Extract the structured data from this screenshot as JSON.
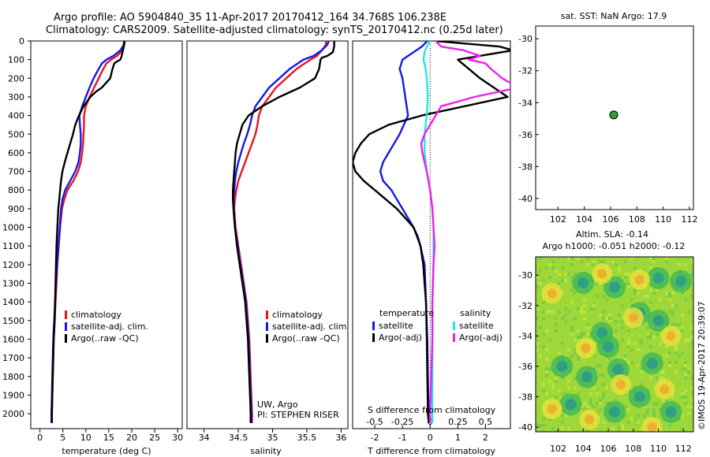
{
  "header": {
    "line1": "Argo profile: AO 5904840_35 11-Apr-2017 20170412_164 34.768S 106.238E",
    "line2": "Climatology: CARS2009. Satellite-adjusted climatology: synTS_20170412.nc (0.25d later)"
  },
  "side_label": "©IMOS 19-Apr-2017 20:39:07",
  "credit": {
    "line1": "UW, Argo",
    "line2": "PI: STEPHEN RISER"
  },
  "colors": {
    "climatology": "#e8141c",
    "satellite": "#1418e8",
    "argo": "#000000",
    "sat_salinity": "#1ee8e8",
    "argo_salinity": "#f01ef0"
  },
  "chart_data": [
    {
      "type": "line",
      "name": "temperature",
      "xlabel": "temperature (deg C)",
      "xticks": [
        "0",
        "5",
        "10",
        "15",
        "20",
        "25",
        "30"
      ],
      "xlim": [
        -2,
        31
      ],
      "ylim": [
        0,
        2080
      ],
      "yticks": [
        "0",
        "100",
        "200",
        "300",
        "400",
        "500",
        "600",
        "700",
        "800",
        "900",
        "1000",
        "1100",
        "1200",
        "1300",
        "1400",
        "1500",
        "1600",
        "1700",
        "1800",
        "1900",
        "2000"
      ],
      "legend": [
        "climatology",
        "satellite-adj. clim.",
        "Argo(..raw -QC)"
      ],
      "series": [
        {
          "name": "climatology",
          "color": "climatology",
          "depth": [
            0,
            20,
            50,
            80,
            100,
            120,
            150,
            200,
            250,
            300,
            350,
            400,
            450,
            500,
            550,
            600,
            650,
            700,
            750,
            800,
            850,
            900,
            1000,
            1100,
            1200,
            1300,
            1400,
            1500,
            1600,
            1700,
            1800,
            1900,
            2000,
            2050
          ],
          "values": [
            18.5,
            18.4,
            18.0,
            16.8,
            15.5,
            14.5,
            13.8,
            12.8,
            11.8,
            10.8,
            10.0,
            9.6,
            9.6,
            9.5,
            9.4,
            9.2,
            8.9,
            8.3,
            7.3,
            6.0,
            5.3,
            4.8,
            4.4,
            4.1,
            3.8,
            3.6,
            3.4,
            3.2,
            3.0,
            2.9,
            2.8,
            2.7,
            2.6,
            2.6
          ]
        },
        {
          "name": "satellite-adj. clim.",
          "color": "satellite",
          "depth": [
            0,
            20,
            50,
            80,
            100,
            120,
            150,
            200,
            250,
            300,
            350,
            400,
            450,
            500,
            550,
            600,
            650,
            700,
            750,
            800,
            850,
            900,
            1000,
            1100,
            1200,
            1300,
            1400,
            1500,
            1600,
            1700,
            1800,
            1900,
            2000,
            2050
          ],
          "values": [
            18.4,
            18.3,
            17.5,
            16.0,
            14.5,
            13.5,
            12.8,
            11.7,
            10.8,
            10.0,
            9.2,
            8.6,
            8.7,
            8.9,
            8.9,
            8.7,
            8.4,
            7.7,
            6.6,
            5.5,
            4.9,
            4.6,
            4.3,
            4.0,
            3.7,
            3.5,
            3.3,
            3.1,
            2.9,
            2.8,
            2.7,
            2.6,
            2.5,
            2.5
          ]
        },
        {
          "name": "Argo(..raw -QC)",
          "color": "argo",
          "depth": [
            0,
            20,
            50,
            80,
            100,
            110,
            120,
            150,
            200,
            250,
            270,
            300,
            350,
            400,
            450,
            500,
            550,
            600,
            650,
            700,
            750,
            800,
            850,
            900,
            950,
            1000,
            1100,
            1200,
            1300,
            1400,
            1500,
            1600,
            1700,
            1800,
            1900,
            2000,
            2050
          ],
          "values": [
            18.3,
            18.3,
            18.1,
            17.8,
            17.5,
            16.8,
            16.2,
            15.8,
            15.3,
            13.5,
            12.3,
            11.0,
            9.5,
            8.5,
            7.7,
            7.2,
            6.6,
            6.0,
            5.4,
            4.9,
            4.6,
            4.4,
            4.2,
            4.0,
            3.9,
            3.8,
            3.6,
            3.5,
            3.4,
            3.3,
            3.2,
            3.0,
            2.9,
            2.8,
            2.7,
            2.6,
            2.6
          ]
        }
      ]
    },
    {
      "type": "line",
      "name": "salinity",
      "xlabel": "salinity",
      "xticks": [
        "34",
        "34.5",
        "35",
        "35.5",
        "36"
      ],
      "xlim": [
        33.75,
        36.1
      ],
      "ylim": [
        0,
        2080
      ],
      "legend": [
        "climatology",
        "satellite-adj. clim.",
        "Argo(..raw -QC)"
      ],
      "series": [
        {
          "name": "climatology",
          "color": "climatology",
          "depth": [
            0,
            20,
            50,
            80,
            100,
            150,
            200,
            250,
            300,
            350,
            400,
            450,
            500,
            550,
            600,
            650,
            700,
            750,
            800,
            850,
            900,
            1000,
            1100,
            1200,
            1300,
            1400,
            1500,
            1600,
            1700,
            1800,
            1900,
            2000,
            2050
          ],
          "values": [
            35.78,
            35.78,
            35.72,
            35.65,
            35.55,
            35.35,
            35.2,
            35.05,
            34.95,
            34.85,
            34.8,
            34.78,
            34.75,
            34.7,
            34.65,
            34.6,
            34.55,
            34.5,
            34.47,
            34.45,
            34.44,
            34.46,
            34.5,
            34.54,
            34.58,
            34.62,
            34.64,
            34.66,
            34.67,
            34.68,
            34.69,
            34.7,
            34.7
          ]
        },
        {
          "name": "satellite-adj. clim.",
          "color": "satellite",
          "depth": [
            0,
            20,
            50,
            80,
            100,
            150,
            200,
            250,
            300,
            350,
            400,
            450,
            500,
            550,
            600,
            650,
            700,
            750,
            800,
            850,
            900,
            1000,
            1100,
            1200,
            1300,
            1400,
            1500,
            1600,
            1700,
            1800,
            1900,
            2000,
            2050
          ],
          "values": [
            35.82,
            35.8,
            35.72,
            35.6,
            35.45,
            35.25,
            35.1,
            34.95,
            34.85,
            34.75,
            34.7,
            34.67,
            34.63,
            34.58,
            34.54,
            34.5,
            34.47,
            34.45,
            34.44,
            34.43,
            34.43,
            34.45,
            34.49,
            34.53,
            34.57,
            34.61,
            34.63,
            34.65,
            34.66,
            34.67,
            34.68,
            34.69,
            34.69
          ]
        },
        {
          "name": "Argo(..raw -QC)",
          "color": "argo",
          "depth": [
            0,
            30,
            60,
            80,
            90,
            100,
            150,
            200,
            250,
            300,
            350,
            400,
            450,
            500,
            550,
            600,
            650,
            700,
            750,
            800,
            850,
            900,
            950,
            1000,
            1100,
            1200,
            1300,
            1400,
            1500,
            1600,
            1700,
            1800,
            1900,
            2000,
            2050
          ],
          "values": [
            35.9,
            35.9,
            35.88,
            35.8,
            35.72,
            35.7,
            35.68,
            35.62,
            35.4,
            35.1,
            34.85,
            34.65,
            34.56,
            34.52,
            34.48,
            34.46,
            34.45,
            34.44,
            34.43,
            34.42,
            34.42,
            34.43,
            34.44,
            34.45,
            34.48,
            34.52,
            34.56,
            34.6,
            34.62,
            34.64,
            34.65,
            34.66,
            34.67,
            34.68,
            34.68
          ]
        }
      ]
    },
    {
      "type": "line",
      "name": "difference",
      "xlabel": "T difference from climatology",
      "xlabel_top": "S difference from climatology",
      "xticks_bottom": [
        "-2",
        "-1",
        "0",
        "1",
        "2"
      ],
      "xticks_top": [
        "-0.5",
        "-0.25",
        "0",
        "0.25",
        "0.5"
      ],
      "xlim": [
        -2.8,
        2.9
      ],
      "ylim": [
        0,
        2080
      ],
      "legend": {
        "temperature_title": "temperature",
        "salinity_title": "salinity",
        "items": [
          "satellite",
          "Argo(-adj)",
          "satellite",
          "Argo(-adj)"
        ]
      },
      "series": [
        {
          "name": "temperature satellite",
          "color": "satellite",
          "depth": [
            0,
            30,
            60,
            100,
            150,
            200,
            300,
            400,
            500,
            600,
            650,
            700,
            750,
            800,
            850,
            900,
            950,
            1000,
            1100,
            1200,
            1400,
            1600,
            1800,
            2000,
            2050
          ],
          "values": [
            -0.1,
            -0.3,
            -0.6,
            -1.0,
            -1.1,
            -1.0,
            -0.9,
            -0.8,
            -1.1,
            -1.5,
            -1.7,
            -1.8,
            -1.7,
            -1.4,
            -1.2,
            -1.0,
            -0.8,
            -0.6,
            -0.35,
            -0.2,
            -0.15,
            -0.1,
            -0.08,
            -0.05,
            -0.05
          ]
        },
        {
          "name": "temperature Argo(-adj)",
          "color": "argo",
          "depth": [
            0,
            30,
            50,
            100,
            200,
            300,
            400,
            450,
            500,
            550,
            600,
            650,
            700,
            750,
            800,
            850,
            900,
            950,
            1000,
            1050,
            1100,
            1200,
            1300,
            1400,
            1600,
            1800,
            2000,
            2050
          ],
          "values": [
            0.2,
            2.5,
            3.0,
            1.0,
            1.8,
            2.8,
            -0.3,
            -1.5,
            -2.2,
            -2.5,
            -2.7,
            -2.8,
            -2.7,
            -2.4,
            -2.0,
            -1.6,
            -1.2,
            -0.9,
            -0.6,
            -0.45,
            -0.35,
            -0.25,
            -0.2,
            -0.15,
            -0.12,
            -0.1,
            -0.08,
            -0.05
          ]
        },
        {
          "name": "salinity satellite",
          "color": "sat_salinity",
          "depth": [
            0,
            30,
            60,
            100,
            150,
            200,
            300,
            400,
            500,
            600,
            650,
            700,
            800,
            900,
            1000,
            1100,
            1200,
            1400,
            1600,
            1800,
            2000,
            2050
          ],
          "values": [
            0.0,
            -0.03,
            -0.05,
            -0.06,
            -0.04,
            -0.03,
            -0.02,
            -0.03,
            -0.05,
            -0.05,
            -0.04,
            -0.03,
            0.0,
            0.02,
            0.03,
            0.03,
            0.03,
            0.02,
            0.02,
            0.02,
            0.02,
            0.02
          ]
        },
        {
          "name": "salinity Argo(-adj)",
          "color": "argo_salinity",
          "depth": [
            0,
            30,
            50,
            80,
            100,
            120,
            150,
            200,
            250,
            300,
            350,
            400,
            450,
            500,
            550,
            600,
            650,
            700,
            800,
            900,
            1000,
            1100,
            1200,
            1400,
            1600,
            1800,
            2000,
            2050
          ],
          "values": [
            0.05,
            0.1,
            0.3,
            0.45,
            0.35,
            0.5,
            0.55,
            0.65,
            0.8,
            0.4,
            0.1,
            0.05,
            0.0,
            -0.05,
            -0.08,
            -0.07,
            -0.05,
            -0.03,
            0.0,
            0.02,
            0.03,
            0.04,
            0.03,
            0.02,
            0.02,
            0.01,
            0.0,
            0.0
          ]
        }
      ]
    },
    {
      "type": "scatter",
      "name": "location",
      "title": "sat. SST: NaN Argo: 17.9",
      "xticks": [
        "102",
        "104",
        "106",
        "108",
        "110",
        "112"
      ],
      "yticks": [
        "-30",
        "-32",
        "-34",
        "-36",
        "-38",
        "-40"
      ],
      "xlim": [
        100.3,
        112.3
      ],
      "ylim": [
        -40.7,
        -29.2
      ],
      "point": {
        "lon": 106.238,
        "lat": -34.768
      }
    },
    {
      "type": "heatmap",
      "name": "sla",
      "title1": "Altim. SLA: -0.14",
      "title2": "Argo h1000: -0.051 h2000: -0.12",
      "xticks": [
        "102",
        "104",
        "106",
        "108",
        "110",
        "112"
      ],
      "yticks": [
        "-30",
        "-32",
        "-34",
        "-36",
        "-38",
        "-40"
      ],
      "xlim": [
        100.2,
        112.8
      ],
      "ylim": [
        -40.3,
        -28.8
      ],
      "cool_spots": [
        [
          104.0,
          -30.5
        ],
        [
          106.5,
          -30.8
        ],
        [
          110.0,
          -30.2
        ],
        [
          111.8,
          -30.4
        ],
        [
          105.5,
          -33.8
        ],
        [
          108.5,
          -32.5
        ],
        [
          110.0,
          -33.0
        ],
        [
          106.0,
          -34.7
        ],
        [
          102.3,
          -36.0
        ],
        [
          104.3,
          -36.7
        ],
        [
          106.8,
          -36.2
        ],
        [
          109.5,
          -35.8
        ],
        [
          103.0,
          -38.5
        ],
        [
          106.5,
          -39.0
        ],
        [
          108.5,
          -38.0
        ],
        [
          111.0,
          -39.0
        ]
      ],
      "warm_spots": [
        [
          105.5,
          -29.9
        ],
        [
          108.5,
          -30.3
        ],
        [
          101.5,
          -31.2
        ],
        [
          108.0,
          -32.8
        ],
        [
          104.2,
          -34.8
        ],
        [
          111.0,
          -34.0
        ],
        [
          107.0,
          -37.2
        ],
        [
          110.5,
          -37.5
        ],
        [
          101.5,
          -38.8
        ],
        [
          104.5,
          -39.5
        ],
        [
          109.5,
          -40.0
        ]
      ]
    }
  ]
}
